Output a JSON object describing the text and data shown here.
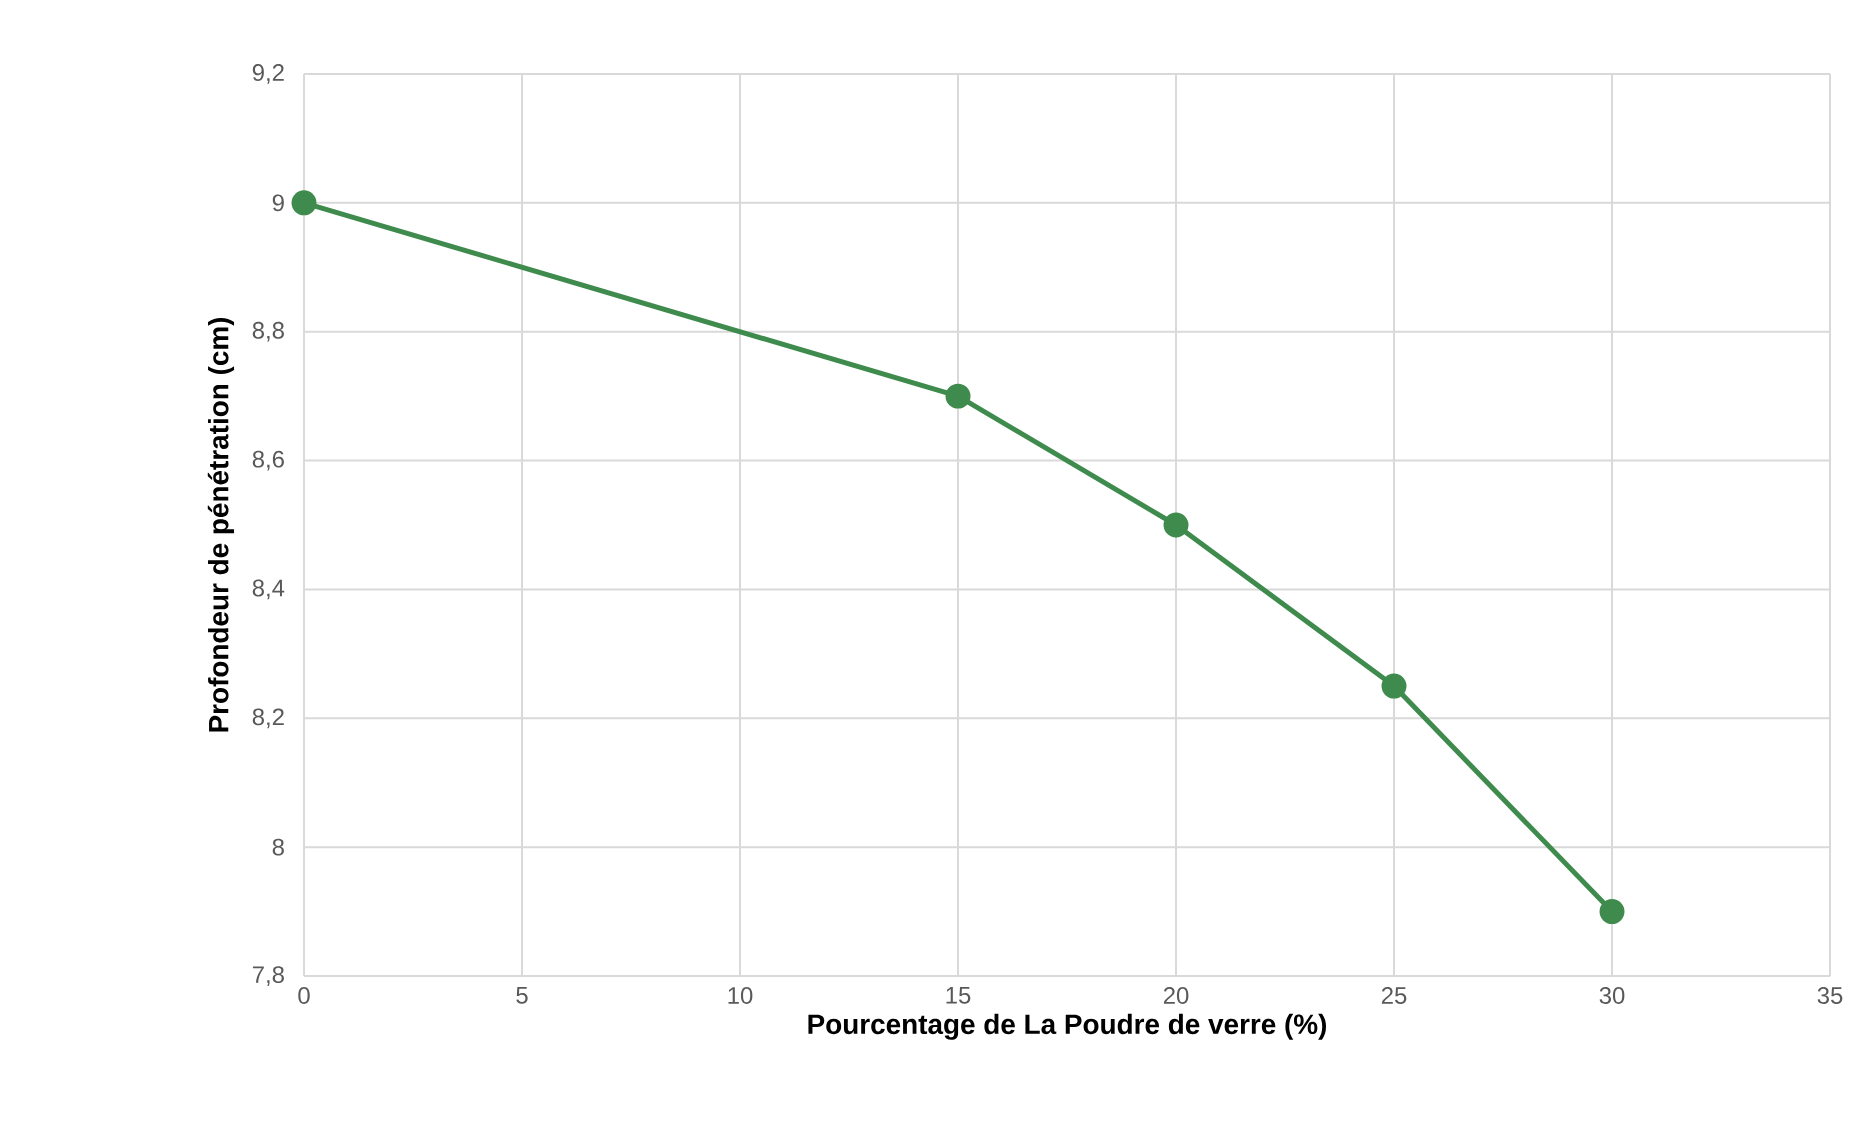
{
  "chart_data": {
    "type": "line",
    "xlabel": "Pourcentage de La Poudre de verre (%)",
    "ylabel": "Profondeur de pénétration (cm)",
    "x": [
      0,
      15,
      20,
      25,
      30
    ],
    "series": [
      {
        "color": "#3f8b4e",
        "values": [
          9,
          8.7,
          8.5,
          8.25,
          7.9
        ]
      }
    ],
    "xlim": [
      0,
      35
    ],
    "xticks": [
      0,
      5,
      10,
      15,
      20,
      25,
      30,
      35
    ],
    "ylim": [
      7.8,
      9.2
    ],
    "yticks": [
      {
        "value": 7.8,
        "label": "7,8"
      },
      8,
      {
        "value": 8.2,
        "label": "8,2"
      },
      {
        "value": 8.4,
        "label": "8,4"
      },
      {
        "value": 8.6,
        "label": "8,6"
      },
      {
        "value": 8.8,
        "label": "8,8"
      },
      9,
      {
        "value": 9.2,
        "label": "9,2"
      }
    ],
    "grid": true,
    "marker": "circle",
    "line_style": "solid"
  }
}
